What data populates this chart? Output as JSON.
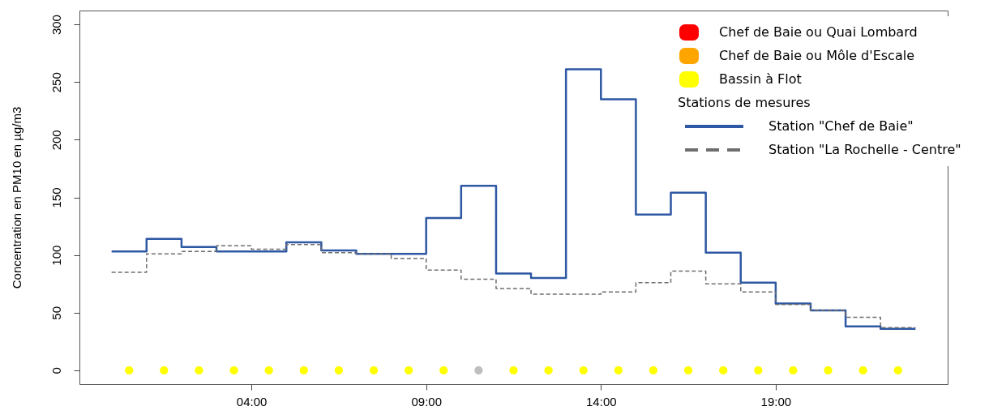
{
  "chart_data": {
    "type": "step",
    "ylabel": "Concentration en PM10 en µg/m3",
    "legend_title": "Stations de mesures",
    "legend": "top right",
    "xlim": [
      -0.92,
      23.92
    ],
    "ylim": [
      -12,
      312
    ],
    "xticks": [
      {
        "value": 4,
        "label": "04:00"
      },
      {
        "value": 9,
        "label": "09:00"
      },
      {
        "value": 14,
        "label": "14:00"
      },
      {
        "value": 19,
        "label": "19:00"
      }
    ],
    "yticks": [
      0,
      50,
      100,
      150,
      200,
      250,
      300
    ],
    "series": [
      {
        "name": "Chef de Baie ou Quai Lombard",
        "type": "scatter",
        "marker": "circle",
        "color": "#ff0000"
      },
      {
        "name": "Chef de Baie ou Môle d'Escale",
        "type": "scatter",
        "marker": "circle",
        "color": "#ffa500"
      },
      {
        "name": "Bassin à Flot",
        "type": "scatter",
        "marker": "circle",
        "color": "#ffff00",
        "x": [
          0.5,
          1.5,
          2.5,
          3.5,
          4.5,
          5.5,
          6.5,
          7.5,
          8.5,
          9.5,
          11.5,
          12.5,
          13.5,
          14.5,
          15.5,
          16.5,
          17.5,
          18.5,
          19.5,
          20.5,
          21.5,
          22.5
        ],
        "values": [
          0,
          0,
          0,
          0,
          0,
          0,
          0,
          0,
          0,
          0,
          0,
          0,
          0,
          0,
          0,
          0,
          0,
          0,
          0,
          0,
          0,
          0
        ]
      },
      {
        "type": "scatter",
        "marker": "circle",
        "color": "#bebebe",
        "x": [
          10.5
        ],
        "values": [
          0
        ]
      },
      {
        "name": "Station \"Chef de Baie\"",
        "line_style": "solid",
        "color": "#2e58a3",
        "x": [
          0,
          1,
          2,
          3,
          4,
          5,
          6,
          7,
          8,
          9,
          10,
          11,
          12,
          13,
          14,
          15,
          16,
          17,
          18,
          19,
          20,
          21,
          22,
          23
        ],
        "values": [
          103,
          114,
          107,
          103,
          103,
          111,
          104,
          101,
          101,
          132,
          160,
          84,
          80,
          261,
          235,
          135,
          154,
          102,
          76,
          58,
          52,
          38,
          36,
          36
        ]
      },
      {
        "name": "Station \"La Rochelle - Centre\"",
        "line_style": "dashed",
        "color": "#6e6e6e",
        "x": [
          0,
          1,
          2,
          3,
          4,
          5,
          6,
          7,
          8,
          9,
          10,
          11,
          12,
          13,
          14,
          15,
          16,
          17,
          18,
          19,
          20,
          21,
          22,
          23
        ],
        "values": [
          85,
          101,
          103,
          108,
          105,
          109,
          102,
          101,
          97,
          87,
          79,
          71,
          66,
          66,
          68,
          76,
          86,
          75,
          68,
          57,
          52,
          46,
          37,
          37
        ]
      }
    ]
  }
}
